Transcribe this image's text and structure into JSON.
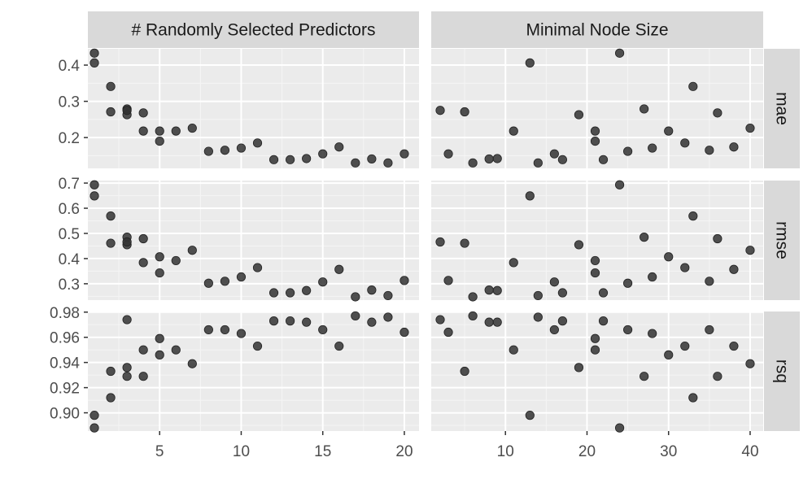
{
  "chart_data": {
    "type": "scatter",
    "layout": "facet_grid",
    "panel_background": "#ebebeb",
    "strip_background": "#d9d9d9",
    "point_color": "#333333",
    "columns": [
      {
        "label": "# Randomly Selected Predictors",
        "xlim": [
          0.6,
          20.9
        ],
        "xticks": [
          5,
          10,
          15,
          20
        ]
      },
      {
        "label": "Minimal Node Size",
        "xlim": [
          0.9,
          41.6
        ],
        "xticks": [
          10,
          20,
          30,
          40
        ]
      }
    ],
    "rows": [
      {
        "label": "mae",
        "ylim": [
          0.115,
          0.445
        ],
        "yticks": [
          0.2,
          0.3,
          0.4
        ],
        "ytick_labels": [
          "0.2",
          "0.3",
          "0.4"
        ]
      },
      {
        "label": "rmse",
        "ylim": [
          0.235,
          0.71
        ],
        "yticks": [
          0.3,
          0.4,
          0.5,
          0.6,
          0.7
        ],
        "ytick_labels": [
          "0.3",
          "0.4",
          "0.5",
          "0.6",
          "0.7"
        ]
      },
      {
        "label": "rsq",
        "ylim": [
          0.8855,
          0.9805
        ],
        "yticks": [
          0.9,
          0.92,
          0.94,
          0.96,
          0.98
        ],
        "ytick_labels": [
          "0.90",
          "0.92",
          "0.94",
          "0.96",
          "0.98"
        ]
      }
    ],
    "points": [
      {
        "mtry": 1,
        "min_n": 24,
        "mae": 0.433,
        "rmse": 0.693,
        "rsq": 0.888
      },
      {
        "mtry": 1,
        "min_n": 13,
        "mae": 0.406,
        "rmse": 0.649,
        "rsq": 0.898
      },
      {
        "mtry": 2,
        "min_n": 33,
        "mae": 0.341,
        "rmse": 0.569,
        "rsq": 0.912
      },
      {
        "mtry": 2,
        "min_n": 5,
        "mae": 0.271,
        "rmse": 0.461,
        "rsq": 0.933
      },
      {
        "mtry": 3,
        "min_n": 27,
        "mae": 0.279,
        "rmse": 0.485,
        "rsq": 0.929
      },
      {
        "mtry": 3,
        "min_n": 19,
        "mae": 0.263,
        "rmse": 0.455,
        "rsq": 0.936
      },
      {
        "mtry": 4,
        "min_n": 36,
        "mae": 0.268,
        "rmse": 0.479,
        "rsq": 0.929
      },
      {
        "mtry": 4,
        "min_n": 11,
        "mae": 0.218,
        "rmse": 0.384,
        "rsq": 0.95
      },
      {
        "mtry": 5,
        "min_n": 30,
        "mae": 0.218,
        "rmse": 0.407,
        "rsq": 0.946
      },
      {
        "mtry": 5,
        "min_n": 21,
        "mae": 0.19,
        "rmse": 0.343,
        "rsq": 0.959
      },
      {
        "mtry": 6,
        "min_n": 21,
        "mae": 0.218,
        "rmse": 0.392,
        "rsq": 0.95
      },
      {
        "mtry": 7,
        "min_n": 40,
        "mae": 0.226,
        "rmse": 0.433,
        "rsq": 0.939
      },
      {
        "mtry": 8,
        "min_n": 25,
        "mae": 0.162,
        "rmse": 0.302,
        "rsq": 0.966
      },
      {
        "mtry": 9,
        "min_n": 35,
        "mae": 0.165,
        "rmse": 0.31,
        "rsq": 0.966
      },
      {
        "mtry": 10,
        "min_n": 28,
        "mae": 0.171,
        "rmse": 0.327,
        "rsq": 0.963
      },
      {
        "mtry": 11,
        "min_n": 32,
        "mae": 0.185,
        "rmse": 0.364,
        "rsq": 0.953
      },
      {
        "mtry": 12,
        "min_n": 22,
        "mae": 0.139,
        "rmse": 0.264,
        "rsq": 0.973
      },
      {
        "mtry": 13,
        "min_n": 17,
        "mae": 0.139,
        "rmse": 0.264,
        "rsq": 0.973
      },
      {
        "mtry": 14,
        "min_n": 9,
        "mae": 0.142,
        "rmse": 0.273,
        "rsq": 0.972
      },
      {
        "mtry": 15,
        "min_n": 16,
        "mae": 0.155,
        "rmse": 0.307,
        "rsq": 0.966
      },
      {
        "mtry": 16,
        "min_n": 38,
        "mae": 0.174,
        "rmse": 0.357,
        "rsq": 0.953
      },
      {
        "mtry": 17,
        "min_n": 6,
        "mae": 0.13,
        "rmse": 0.248,
        "rsq": 0.977
      },
      {
        "mtry": 18,
        "min_n": 8,
        "mae": 0.141,
        "rmse": 0.275,
        "rsq": 0.972
      },
      {
        "mtry": 19,
        "min_n": 14,
        "mae": 0.13,
        "rmse": 0.253,
        "rsq": 0.976
      },
      {
        "mtry": 20,
        "min_n": 3,
        "mae": 0.155,
        "rmse": 0.313,
        "rsq": 0.964
      },
      {
        "mtry": 3,
        "min_n": 2,
        "mae": 0.275,
        "rmse": 0.466,
        "rsq": 0.974
      }
    ]
  }
}
